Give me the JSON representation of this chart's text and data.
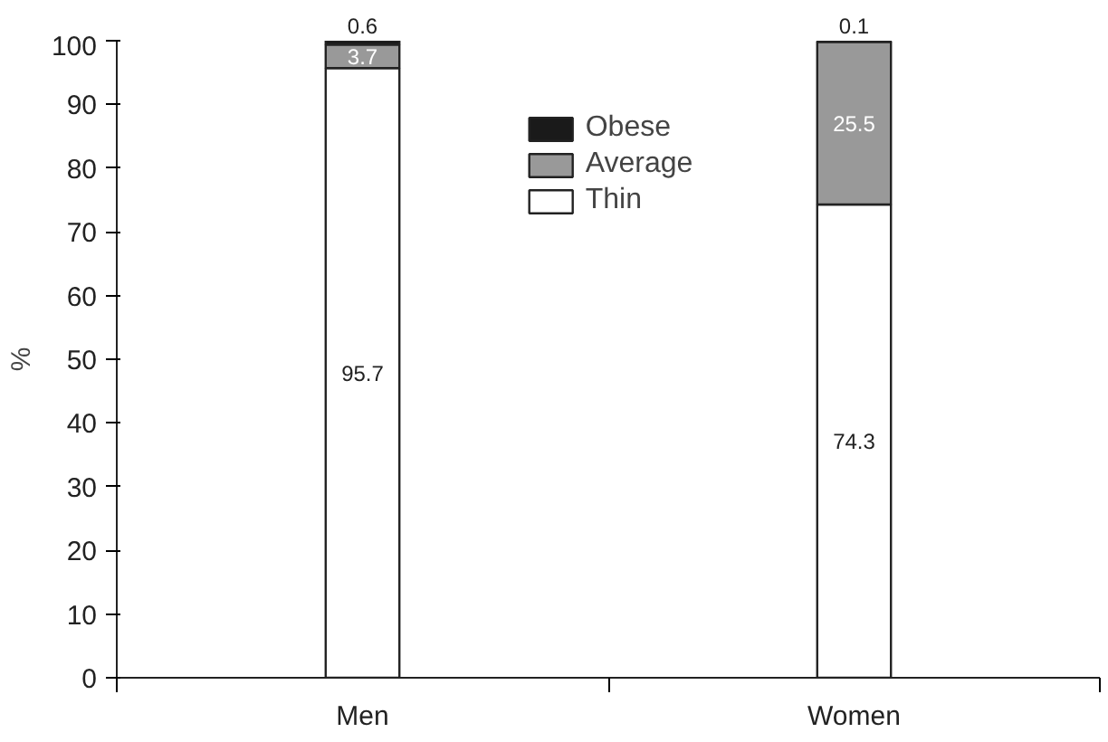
{
  "chart_data": {
    "type": "bar",
    "stacked": true,
    "ylabel": "%",
    "categories": [
      "Men",
      "Women"
    ],
    "series": [
      {
        "name": "Thin",
        "color": "#ffffff",
        "values": [
          95.7,
          74.3
        ]
      },
      {
        "name": "Average",
        "color": "#999999",
        "values": [
          3.7,
          25.5
        ]
      },
      {
        "name": "Obese",
        "color": "#1a1a1a",
        "values": [
          0.6,
          0.1
        ]
      }
    ],
    "ylim": [
      0,
      100
    ],
    "yticks": [
      0,
      10,
      20,
      30,
      40,
      50,
      60,
      70,
      80,
      90,
      100
    ],
    "data_labels": true,
    "legend": "top",
    "grid": false
  }
}
